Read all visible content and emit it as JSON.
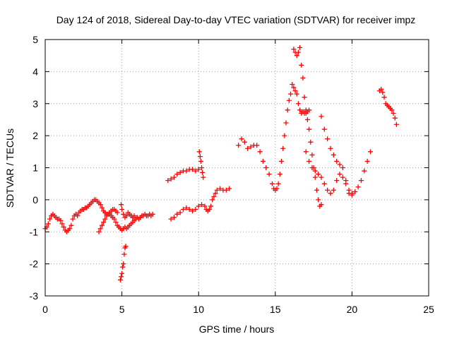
{
  "chart_data": {
    "type": "scatter",
    "title": "Day 124 of 2018, Sidereal Day-to-day VTEC variation (SDTVAR) for receiver impz",
    "xlabel": "GPS time / hours",
    "ylabel": "SDTVAR / TECUs",
    "xlim": [
      0,
      25
    ],
    "ylim": [
      -3,
      5
    ],
    "xticks": [
      0,
      5,
      10,
      15,
      20,
      25
    ],
    "yticks": [
      -3,
      -2,
      -1,
      0,
      1,
      2,
      3,
      4,
      5
    ],
    "grid": true,
    "legend": "none",
    "marker": "plus",
    "color": "#ff0000",
    "series": [
      {
        "x": [
          0.0,
          0.1,
          0.2,
          0.3,
          0.4,
          0.5,
          0.6,
          0.7,
          0.8,
          0.9,
          1.0,
          1.1,
          1.2,
          1.3,
          1.4,
          1.5,
          1.6,
          1.7,
          1.8,
          1.9,
          2.0,
          2.1,
          2.2,
          2.3,
          2.4,
          2.5,
          2.6,
          2.7,
          2.8,
          2.9,
          3.0,
          3.1,
          3.2,
          3.3,
          3.4,
          3.5,
          3.6,
          3.7,
          3.8,
          3.9,
          4.0,
          4.1,
          4.2,
          4.3,
          4.4,
          4.5,
          4.6,
          4.7,
          4.8,
          4.9,
          5.0,
          5.1,
          5.2,
          5.3,
          5.4,
          5.5,
          5.6,
          5.7,
          5.8,
          5.9,
          6.0,
          6.1,
          6.2,
          6.3,
          6.4,
          6.5,
          6.6,
          6.7,
          6.8,
          6.9,
          7.0
        ],
        "y": [
          -0.9,
          -0.85,
          -0.75,
          -0.6,
          -0.5,
          -0.45,
          -0.5,
          -0.55,
          -0.6,
          -0.6,
          -0.65,
          -0.75,
          -0.85,
          -0.95,
          -1.0,
          -0.95,
          -0.9,
          -0.8,
          -0.6,
          -0.5,
          -0.45,
          -0.5,
          -0.4,
          -0.35,
          -0.3,
          -0.3,
          -0.25,
          -0.25,
          -0.2,
          -0.15,
          -0.1,
          -0.05,
          0.0,
          0.0,
          -0.05,
          -0.1,
          -0.15,
          -0.25,
          -0.35,
          -0.4,
          -0.45,
          -0.45,
          -0.45,
          -0.5,
          -0.55,
          -0.6,
          -0.7,
          -0.8,
          -0.85,
          -0.9,
          -0.95,
          -0.9,
          -0.85,
          -0.9,
          -0.85,
          -0.8,
          -0.75,
          -0.7,
          -0.65,
          -0.6,
          -0.55,
          -0.6,
          -0.55,
          -0.5,
          -0.5,
          -0.45,
          -0.5,
          -0.5,
          -0.45,
          -0.5,
          -0.45
        ]
      },
      {
        "x": [
          3.5,
          3.6,
          3.7,
          3.8,
          3.9,
          4.0,
          4.1,
          4.2,
          4.3,
          4.4,
          4.5,
          4.6,
          4.7
        ],
        "y": [
          -1.0,
          -0.9,
          -0.8,
          -0.7,
          -0.6,
          -0.5,
          -0.45,
          -0.4,
          -0.35,
          -0.3,
          -0.3,
          -0.35,
          -0.4
        ]
      },
      {
        "x": [
          4.9,
          4.95,
          5.0,
          5.05,
          5.1,
          5.15,
          5.2,
          5.25
        ],
        "y": [
          -2.5,
          -2.4,
          -2.3,
          -2.1,
          -2.0,
          -1.7,
          -1.5,
          -1.45
        ]
      },
      {
        "x": [
          4.95,
          5.0,
          5.1,
          5.2,
          5.3,
          5.4,
          5.5,
          5.6,
          5.7,
          5.8
        ],
        "y": [
          -0.15,
          -0.3,
          -0.45,
          -0.55,
          -0.5,
          -0.4,
          -0.45,
          -0.5,
          -0.55,
          -0.5
        ]
      },
      {
        "x": [
          8.0,
          8.2,
          8.4,
          8.6,
          8.8,
          9.0,
          9.2,
          9.4,
          9.6,
          9.8,
          10.0
        ],
        "y": [
          0.6,
          0.65,
          0.7,
          0.8,
          0.85,
          0.9,
          0.9,
          0.95,
          0.95,
          0.9,
          0.95
        ]
      },
      {
        "x": [
          10.05,
          10.1,
          10.15,
          10.2,
          10.25,
          10.3
        ],
        "y": [
          1.5,
          1.35,
          1.2,
          1.0,
          0.85,
          0.7
        ]
      },
      {
        "x": [
          8.2,
          8.4,
          8.6,
          8.8,
          9.0,
          9.2,
          9.4,
          9.6,
          9.8,
          10.0,
          10.2,
          10.4,
          10.5,
          10.6,
          10.7,
          10.8,
          10.9,
          11.0,
          11.1,
          11.2,
          11.4,
          11.6,
          11.8,
          12.0
        ],
        "y": [
          -0.6,
          -0.55,
          -0.45,
          -0.4,
          -0.3,
          -0.25,
          -0.3,
          -0.35,
          -0.3,
          -0.2,
          -0.15,
          -0.2,
          -0.3,
          -0.35,
          -0.3,
          -0.2,
          0.0,
          0.1,
          0.2,
          0.3,
          0.35,
          0.3,
          0.3,
          0.35
        ]
      },
      {
        "x": [
          12.6,
          12.8,
          13.0,
          13.2,
          13.4,
          13.6,
          13.8,
          14.0,
          14.2,
          14.4,
          14.6,
          14.8,
          14.9,
          15.0,
          15.1,
          15.2,
          15.3,
          15.4,
          15.5,
          15.6,
          15.7,
          15.8,
          15.9,
          16.0,
          16.1,
          16.2,
          16.3,
          16.4,
          16.5,
          16.6,
          16.7,
          16.8,
          16.9,
          17.0,
          17.1,
          17.2
        ],
        "y": [
          1.7,
          1.9,
          1.8,
          1.6,
          1.65,
          1.7,
          1.7,
          1.5,
          1.2,
          1.0,
          0.8,
          0.5,
          0.35,
          0.3,
          0.35,
          0.5,
          0.8,
          1.2,
          1.6,
          2.0,
          2.4,
          2.8,
          3.1,
          3.3,
          3.6,
          3.5,
          3.4,
          3.3,
          3.0,
          2.8,
          2.7,
          2.75,
          2.7,
          2.7,
          2.75,
          2.8
        ]
      },
      {
        "x": [
          16.2,
          16.3,
          16.4,
          16.5,
          16.6,
          16.7,
          16.8,
          16.9,
          17.0,
          17.1,
          17.2,
          17.3,
          17.4,
          17.5,
          17.6,
          17.7,
          17.8,
          17.9,
          18.0
        ],
        "y": [
          4.7,
          4.6,
          4.5,
          4.6,
          4.75,
          4.2,
          3.8,
          3.2,
          2.8,
          2.5,
          2.2,
          1.8,
          1.4,
          1.0,
          0.7,
          0.3,
          0.0,
          -0.2,
          -0.15
        ]
      },
      {
        "x": [
          17.0,
          17.2,
          17.4,
          17.6,
          17.8,
          18.0,
          18.2,
          18.4,
          18.6,
          18.8,
          19.0,
          19.2,
          19.4,
          19.6,
          19.8,
          20.0
        ],
        "y": [
          1.5,
          1.2,
          1.0,
          0.9,
          0.8,
          0.7,
          0.5,
          0.3,
          0.2,
          0.3,
          0.6,
          0.8,
          0.7,
          0.5,
          0.3,
          0.2
        ]
      },
      {
        "x": [
          18.0,
          18.2,
          18.4,
          18.6,
          18.8,
          19.0,
          19.2,
          19.4,
          19.6,
          19.8,
          20.0,
          20.2,
          20.4,
          20.6,
          20.8,
          21.0,
          21.2
        ],
        "y": [
          2.6,
          2.2,
          1.9,
          1.6,
          1.4,
          1.2,
          1.1,
          1.0,
          0.6,
          0.2,
          0.15,
          0.25,
          0.4,
          0.6,
          0.9,
          1.2,
          1.5
        ]
      },
      {
        "x": [
          21.8,
          21.9,
          22.0,
          22.1,
          22.2,
          22.3,
          22.4,
          22.5,
          22.6,
          22.7,
          22.8,
          22.9
        ],
        "y": [
          3.4,
          3.45,
          3.35,
          3.2,
          3.0,
          2.95,
          2.9,
          2.85,
          2.8,
          2.7,
          2.55,
          2.35
        ]
      }
    ]
  }
}
